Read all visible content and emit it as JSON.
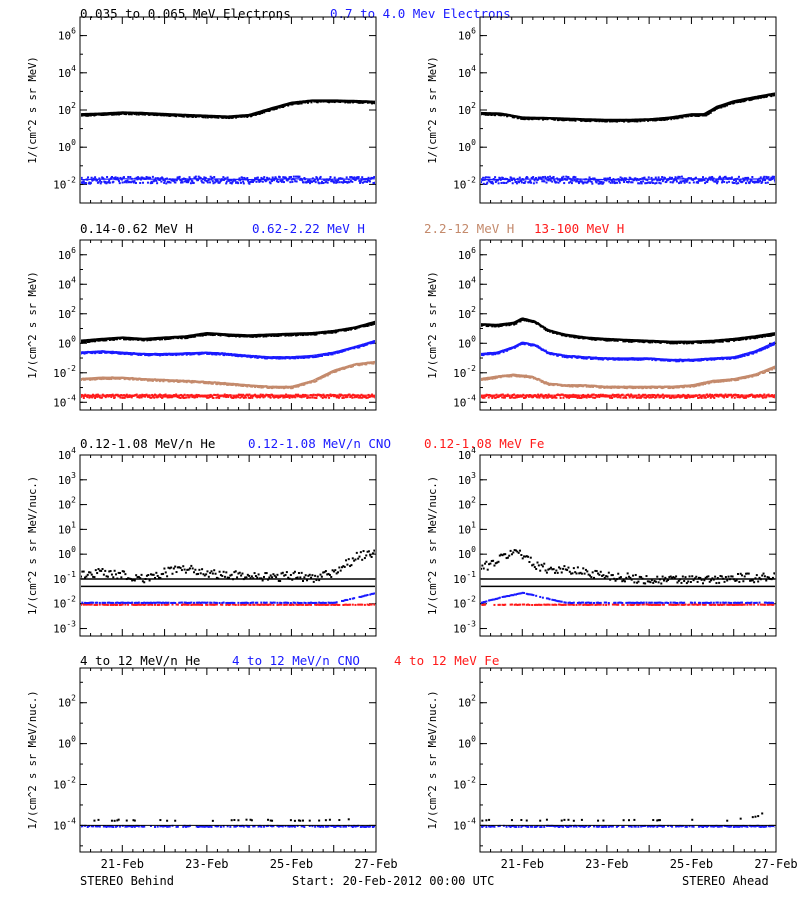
{
  "footer": {
    "left": "STEREO Behind",
    "center": "Start: 20-Feb-2012 00:00 UTC",
    "right": "STEREO Ahead"
  },
  "colors": {
    "black": "#000000",
    "blue": "#1a1aff",
    "tan": "#c48a6c",
    "red": "#ff1a1a",
    "axis": "#000000"
  },
  "chart_data": [
    {
      "type": "scatter",
      "panel": "Electrons",
      "spacecraft": "STEREO Behind",
      "yscale": "log",
      "ylim": [
        0.001,
        10000000
      ],
      "yticks": [
        "10^6",
        "10^4",
        "10^2",
        "10^0",
        "10^-2"
      ],
      "ylabel": "1/(cm^2 s sr MeV)",
      "xticks": [
        "21-Feb",
        "23-Feb",
        "25-Feb",
        "27-Feb"
      ],
      "xlim": [
        "2012-02-20",
        "2012-02-27"
      ],
      "series": [
        {
          "name": "0.035 to 0.065 MeV Electrons",
          "color": "black",
          "x": [
            0,
            0.5,
            1,
            1.5,
            2,
            2.5,
            3,
            3.5,
            4,
            4.5,
            5,
            5.5,
            6,
            6.5,
            7
          ],
          "y": [
            60,
            65,
            75,
            70,
            62,
            55,
            50,
            45,
            55,
            120,
            250,
            330,
            330,
            310,
            280
          ]
        },
        {
          "name": "0.7 to 4.0 Mev Electrons",
          "color": "blue",
          "x": [
            0,
            1,
            2,
            3,
            4,
            5,
            6,
            7
          ],
          "y": [
            0.018,
            0.02,
            0.019,
            0.02,
            0.018,
            0.02,
            0.019,
            0.02
          ]
        }
      ]
    },
    {
      "type": "scatter",
      "panel": "Electrons",
      "spacecraft": "STEREO Ahead",
      "yscale": "log",
      "ylim": [
        0.001,
        10000000
      ],
      "yticks": [
        "10^6",
        "10^4",
        "10^2",
        "10^0",
        "10^-2"
      ],
      "ylabel": "1/(cm^2 s sr MeV)",
      "xticks": [
        "21-Feb",
        "23-Feb",
        "25-Feb",
        "27-Feb"
      ],
      "xlim": [
        "2012-02-20",
        "2012-02-27"
      ],
      "series": [
        {
          "name": "0.035 to 0.065 MeV Electrons",
          "color": "black",
          "x": [
            0,
            0.5,
            1,
            1.5,
            2,
            2.5,
            3,
            3.5,
            4,
            4.5,
            5,
            5.3,
            5.6,
            6,
            6.5,
            7
          ],
          "y": [
            70,
            65,
            40,
            38,
            35,
            32,
            30,
            30,
            32,
            40,
            60,
            60,
            150,
            300,
            500,
            800
          ]
        },
        {
          "name": "0.7 to 4.0 Mev Electrons",
          "color": "blue",
          "x": [
            0,
            1,
            2,
            3,
            4,
            5,
            6,
            7
          ],
          "y": [
            0.018,
            0.019,
            0.02,
            0.018,
            0.019,
            0.02,
            0.019,
            0.02
          ]
        }
      ]
    },
    {
      "type": "scatter",
      "panel": "Protons",
      "spacecraft": "STEREO Behind",
      "yscale": "log",
      "ylim": [
        3e-05,
        10000000
      ],
      "yticks": [
        "10^6",
        "10^4",
        "10^2",
        "10^0",
        "10^-2",
        "10^-4"
      ],
      "ylabel": "1/(cm^2 s sr MeV)",
      "xticks": [
        "21-Feb",
        "23-Feb",
        "25-Feb",
        "27-Feb"
      ],
      "xlim": [
        "2012-02-20",
        "2012-02-27"
      ],
      "series": [
        {
          "name": "0.14-0.62 MeV H",
          "color": "black",
          "x": [
            0,
            0.5,
            1,
            1.5,
            2,
            2.5,
            3,
            3.5,
            4,
            4.5,
            5,
            5.5,
            6,
            6.5,
            7
          ],
          "y": [
            1.5,
            2.0,
            2.5,
            2.0,
            2.5,
            3.0,
            5.0,
            4.0,
            3.5,
            4.0,
            4.5,
            5.0,
            7.0,
            12,
            30
          ]
        },
        {
          "name": "0.62-2.22 MeV H",
          "color": "blue",
          "x": [
            0,
            0.5,
            1,
            1.5,
            2,
            2.5,
            3,
            3.5,
            4,
            4.5,
            5,
            5.5,
            6,
            6.5,
            7
          ],
          "y": [
            0.25,
            0.3,
            0.25,
            0.2,
            0.2,
            0.22,
            0.25,
            0.2,
            0.15,
            0.12,
            0.12,
            0.15,
            0.25,
            0.6,
            1.6
          ]
        },
        {
          "name": "2.2-12 MeV H",
          "color": "tan",
          "x": [
            0,
            0.5,
            1,
            1.5,
            2,
            2.5,
            3,
            3.5,
            4,
            4.5,
            5,
            5.5,
            6,
            6.5,
            7
          ],
          "y": [
            0.004,
            0.005,
            0.005,
            0.004,
            0.0035,
            0.003,
            0.0025,
            0.002,
            0.0015,
            0.0012,
            0.0012,
            0.003,
            0.015,
            0.04,
            0.06
          ]
        },
        {
          "name": "13-100 MeV H",
          "color": "red",
          "x": [
            0,
            1,
            2,
            3,
            4,
            5,
            6,
            7
          ],
          "y": [
            0.0003,
            0.0003,
            0.0003,
            0.0003,
            0.0003,
            0.0003,
            0.0003,
            0.0003
          ]
        }
      ]
    },
    {
      "type": "scatter",
      "panel": "Protons",
      "spacecraft": "STEREO Ahead",
      "yscale": "log",
      "ylim": [
        3e-05,
        10000000
      ],
      "yticks": [
        "10^6",
        "10^4",
        "10^2",
        "10^0",
        "10^-2",
        "10^-4"
      ],
      "ylabel": "1/(cm^2 s sr MeV)",
      "xticks": [
        "21-Feb",
        "23-Feb",
        "25-Feb",
        "27-Feb"
      ],
      "xlim": [
        "2012-02-20",
        "2012-02-27"
      ],
      "series": [
        {
          "name": "0.14-0.62 MeV H",
          "color": "black",
          "x": [
            0,
            0.4,
            0.8,
            1.0,
            1.3,
            1.6,
            2,
            2.5,
            3,
            3.5,
            4,
            4.5,
            5,
            5.5,
            6,
            6.5,
            7
          ],
          "y": [
            20,
            18,
            25,
            50,
            30,
            8,
            4,
            2.5,
            2,
            1.7,
            1.5,
            1.3,
            1.3,
            1.5,
            2,
            3,
            5
          ]
        },
        {
          "name": "0.62-2.22 MeV H",
          "color": "blue",
          "x": [
            0,
            0.4,
            0.8,
            1.0,
            1.3,
            1.6,
            2,
            2.5,
            3,
            3.5,
            4,
            4.5,
            5,
            5.5,
            6,
            6.5,
            7
          ],
          "y": [
            0.2,
            0.25,
            0.6,
            1.2,
            0.8,
            0.25,
            0.15,
            0.12,
            0.1,
            0.1,
            0.1,
            0.08,
            0.08,
            0.1,
            0.12,
            0.3,
            1.3
          ]
        },
        {
          "name": "2.2-12 MeV H",
          "color": "tan",
          "x": [
            0,
            0.4,
            0.8,
            1.2,
            1.6,
            2,
            2.5,
            3,
            3.5,
            4,
            4.5,
            5,
            5.5,
            6,
            6.5,
            7
          ],
          "y": [
            0.004,
            0.006,
            0.008,
            0.006,
            0.002,
            0.0015,
            0.0015,
            0.0012,
            0.0012,
            0.0012,
            0.0012,
            0.0015,
            0.003,
            0.004,
            0.008,
            0.03
          ]
        },
        {
          "name": "13-100 MeV H",
          "color": "red",
          "x": [
            0,
            1,
            2,
            3,
            4,
            5,
            6,
            7
          ],
          "y": [
            0.0003,
            0.0003,
            0.0003,
            0.0003,
            0.0003,
            0.0003,
            0.0003,
            0.0003
          ]
        }
      ]
    },
    {
      "type": "scatter",
      "panel": "Low-energy ions",
      "spacecraft": "STEREO Behind",
      "yscale": "log",
      "ylim": [
        0.0005,
        10000
      ],
      "yticks": [
        "10^4",
        "10^3",
        "10^2",
        "10^1",
        "10^0",
        "10^-1",
        "10^-2",
        "10^-3"
      ],
      "ylabel": "1/(cm^2 s sr MeV/nuc.)",
      "xticks": [
        "21-Feb",
        "23-Feb",
        "25-Feb",
        "27-Feb"
      ],
      "xlim": [
        "2012-02-20",
        "2012-02-27"
      ],
      "series": [
        {
          "name": "0.12-1.08 MeV/n He",
          "color": "black",
          "x": [
            0,
            0.5,
            1,
            1.5,
            2,
            2.5,
            3,
            3.5,
            4,
            4.5,
            5,
            5.5,
            6,
            6.5,
            7
          ],
          "y": [
            0.15,
            0.2,
            0.15,
            0.12,
            0.2,
            0.3,
            0.2,
            0.15,
            0.15,
            0.12,
            0.15,
            0.12,
            0.2,
            0.8,
            1.5
          ]
        },
        {
          "name": "0.12-1.08 MeV/n CNO",
          "color": "blue",
          "x": [
            0,
            1,
            2,
            3,
            4,
            5,
            6,
            7
          ],
          "y": [
            0.012,
            0.012,
            0.012,
            0.012,
            0.012,
            0.012,
            0.012,
            0.03
          ]
        },
        {
          "name": "0.12-1.08 MeV Fe",
          "color": "red",
          "x": [
            0,
            1,
            2,
            3,
            4,
            5,
            6,
            7
          ],
          "y": [
            0.01,
            0.01,
            0.01,
            0.01,
            0.01,
            0.01,
            0.01,
            0.01
          ]
        }
      ]
    },
    {
      "type": "scatter",
      "panel": "Low-energy ions",
      "spacecraft": "STEREO Ahead",
      "yscale": "log",
      "ylim": [
        0.0005,
        10000
      ],
      "yticks": [
        "10^4",
        "10^3",
        "10^2",
        "10^1",
        "10^0",
        "10^-1",
        "10^-2",
        "10^-3"
      ],
      "ylabel": "1/(cm^2 s sr MeV/nuc.)",
      "xticks": [
        "21-Feb",
        "23-Feb",
        "25-Feb",
        "27-Feb"
      ],
      "xlim": [
        "2012-02-20",
        "2012-02-27"
      ],
      "series": [
        {
          "name": "0.12-1.08 MeV/n He",
          "color": "black",
          "x": [
            0,
            0.3,
            0.6,
            0.9,
            1.2,
            1.5,
            2,
            2.5,
            3,
            3.5,
            4,
            4.5,
            5,
            5.5,
            6,
            6.5,
            7
          ],
          "y": [
            0.3,
            0.5,
            1.0,
            1.5,
            0.5,
            0.3,
            0.25,
            0.2,
            0.15,
            0.12,
            0.1,
            0.1,
            0.1,
            0.1,
            0.12,
            0.12,
            0.15
          ]
        },
        {
          "name": "0.12-1.08 MeV/n CNO",
          "color": "blue",
          "x": [
            0,
            0.5,
            1,
            2,
            3,
            4,
            5,
            6,
            7
          ],
          "y": [
            0.012,
            0.02,
            0.03,
            0.012,
            0.012,
            0.012,
            0.012,
            0.012,
            0.012
          ]
        },
        {
          "name": "0.12-1.08 MeV Fe",
          "color": "red",
          "x": [
            0,
            1,
            2,
            3,
            4,
            5,
            6,
            7
          ],
          "y": [
            0.01,
            0.01,
            0.01,
            0.01,
            0.01,
            0.01,
            0.01,
            0.01
          ]
        }
      ]
    },
    {
      "type": "scatter",
      "panel": "High-energy ions",
      "spacecraft": "STEREO Behind",
      "yscale": "log",
      "ylim": [
        5e-06,
        5000
      ],
      "yticks": [
        "10^2",
        "10^0",
        "10^-2",
        "10^-4"
      ],
      "ylabel": "1/(cm^2 s sr MeV/nuc.)",
      "xticks": [
        "21-Feb",
        "23-Feb",
        "25-Feb",
        "27-Feb"
      ],
      "xlim": [
        "2012-02-20",
        "2012-02-27"
      ],
      "series": [
        {
          "name": "4 to 12 MeV/n He",
          "color": "black",
          "x": [
            0,
            1,
            2,
            3,
            4,
            5,
            6,
            7
          ],
          "y": [
            0.0002,
            0.0002,
            0.0002,
            0.0002,
            0.0002,
            0.0002,
            0.0002,
            0.0003
          ]
        },
        {
          "name": "4 to 12 MeV/n CNO",
          "color": "blue",
          "x": [
            0,
            1,
            2,
            3,
            4,
            5,
            6,
            7
          ],
          "y": [
            0.0001,
            0.0001,
            0.0001,
            0.0001,
            0.0001,
            0.0001,
            0.0001,
            0.0001
          ]
        },
        {
          "name": "4 to 12 MeV Fe",
          "color": "red",
          "x": [],
          "y": []
        }
      ]
    },
    {
      "type": "scatter",
      "panel": "High-energy ions",
      "spacecraft": "STEREO Ahead",
      "yscale": "log",
      "ylim": [
        5e-06,
        5000
      ],
      "yticks": [
        "10^2",
        "10^0",
        "10^-2",
        "10^-4"
      ],
      "ylabel": "1/(cm^2 s sr MeV/nuc.)",
      "xticks": [
        "21-Feb",
        "23-Feb",
        "25-Feb",
        "27-Feb"
      ],
      "xlim": [
        "2012-02-20",
        "2012-02-27"
      ],
      "series": [
        {
          "name": "4 to 12 MeV/n He",
          "color": "black",
          "x": [
            0,
            1,
            2,
            3,
            4,
            5,
            6,
            6.5,
            7
          ],
          "y": [
            0.0002,
            0.0002,
            0.0002,
            0.0002,
            0.0002,
            0.0002,
            0.0002,
            0.0003,
            0.0008
          ]
        },
        {
          "name": "4 to 12 MeV/n CNO",
          "color": "blue",
          "x": [
            0,
            1,
            2,
            3,
            4,
            5,
            6,
            7
          ],
          "y": [
            0.0001,
            0.0001,
            0.0001,
            0.0001,
            0.0001,
            0.0001,
            0.0001,
            0.0001
          ]
        },
        {
          "name": "4 to 12 MeV Fe",
          "color": "red",
          "x": [],
          "y": []
        }
      ]
    }
  ]
}
